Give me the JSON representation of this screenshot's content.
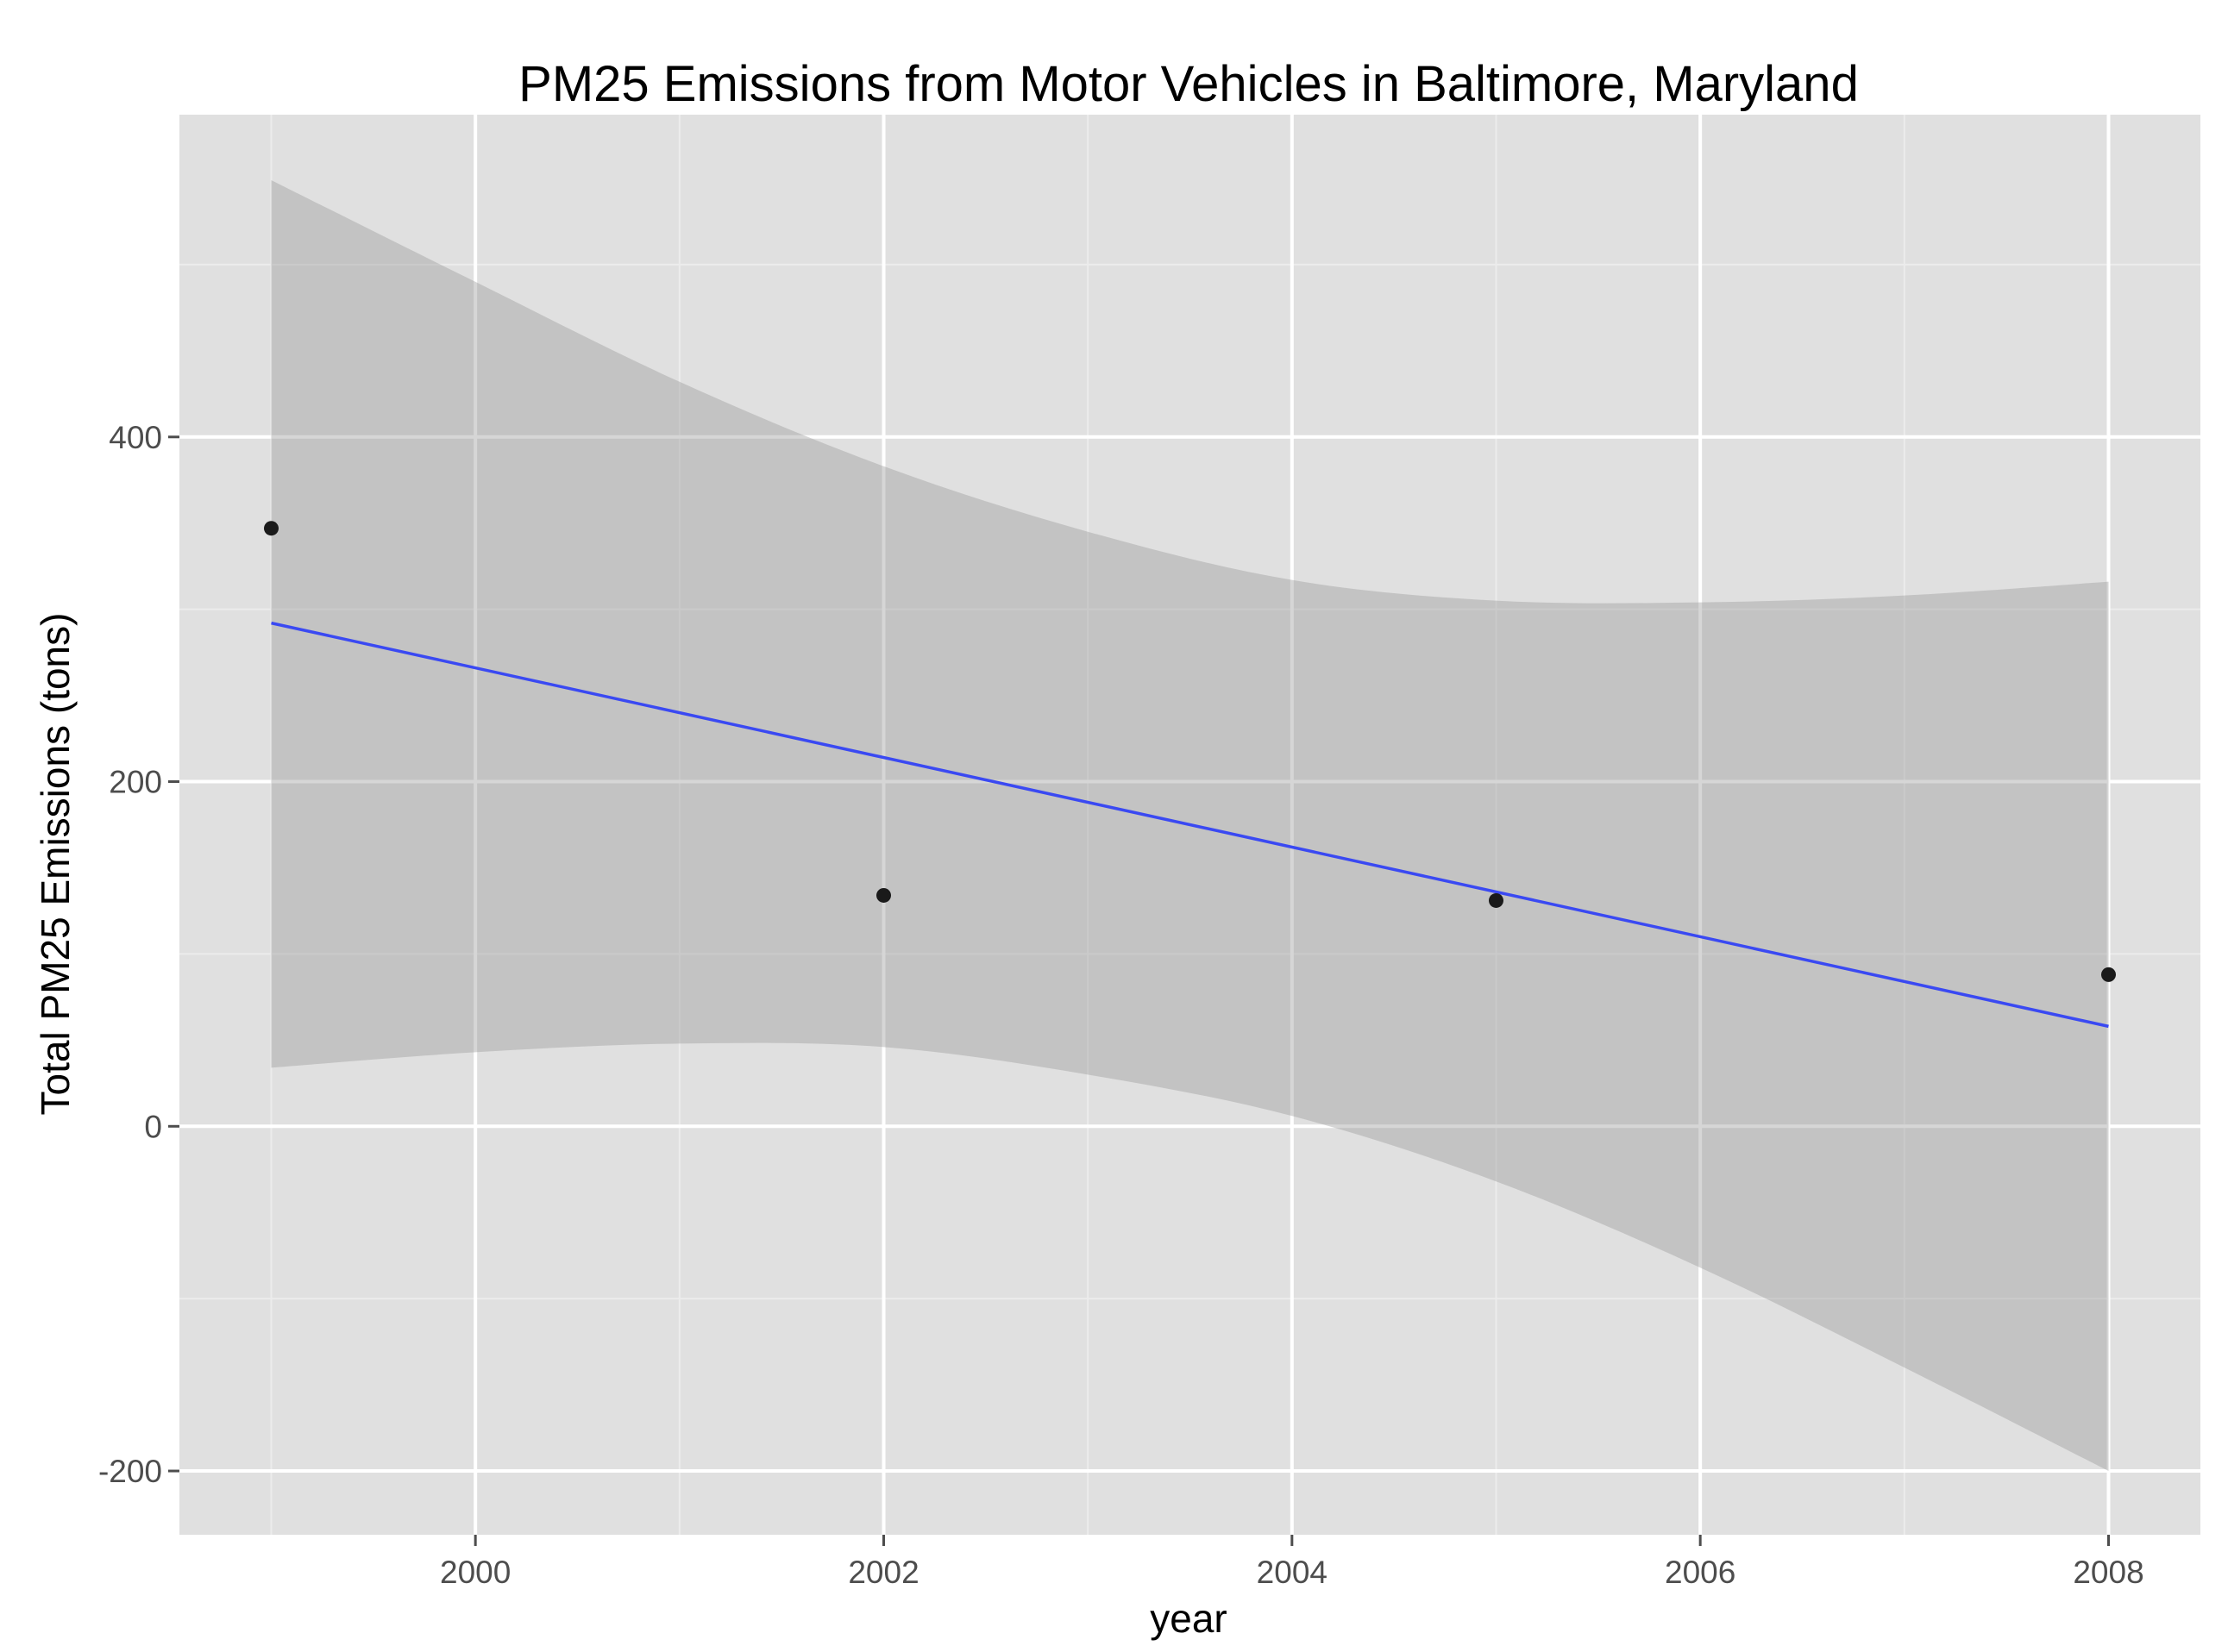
{
  "chart_data": {
    "type": "scatter",
    "title": "PM25 Emissions from Motor Vehicles in Baltimore, Maryland",
    "xlabel": "year",
    "ylabel": "Total PM25 Emissions (tons)",
    "xlim": [
      1998.55,
      2008.45
    ],
    "ylim": [
      -237,
      587
    ],
    "x_ticks": [
      2000,
      2002,
      2004,
      2006,
      2008
    ],
    "x_minor_ticks": [
      1999,
      2001,
      2003,
      2005,
      2007
    ],
    "y_ticks": [
      -200,
      0,
      200,
      400
    ],
    "y_minor_ticks": [
      -100,
      100,
      300,
      500
    ],
    "x_tick_labels": [
      "2000",
      "2002",
      "2004",
      "2006",
      "2008"
    ],
    "y_tick_labels": [
      "-200",
      "0",
      "200",
      "400"
    ],
    "grid": true,
    "legend": "none",
    "series": [
      {
        "points": [
          {
            "x": 1999,
            "y": 347
          },
          {
            "x": 2002,
            "y": 134
          },
          {
            "x": 2005,
            "y": 131
          },
          {
            "x": 2008,
            "y": 88
          }
        ]
      }
    ],
    "fit_line": {
      "method": "linear",
      "x": [
        1999,
        2008
      ],
      "y": [
        292,
        58
      ]
    },
    "confidence_band": {
      "x": [
        1999,
        2000,
        2001,
        2002,
        2003,
        2004,
        2005,
        2006,
        2007,
        2008
      ],
      "upper": [
        549,
        490,
        432,
        383,
        345,
        317,
        305,
        304,
        308,
        316
      ],
      "lower": [
        34,
        43,
        48,
        46,
        30,
        6,
        -32,
        -82,
        -140,
        -200
      ]
    },
    "colors": {
      "panel_background": "#e0e0e0",
      "grid_major": "#ffffff",
      "grid_minor": "#ececec",
      "band_fill": "#999999",
      "fit_line": "#3a49f2",
      "point": "#1a1a1a"
    }
  }
}
